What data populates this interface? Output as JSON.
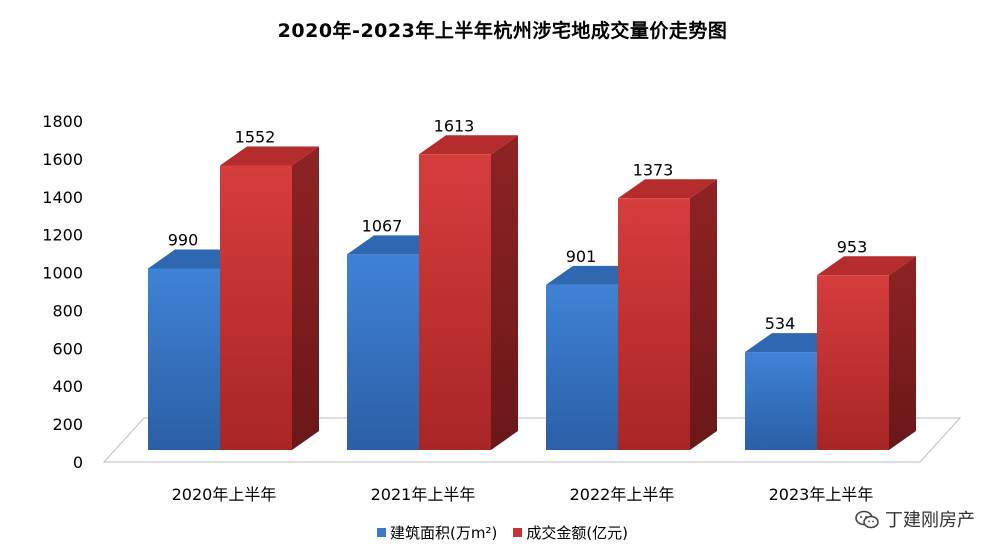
{
  "chart_data": {
    "type": "bar",
    "title": "2020年-2023年上半年杭州涉宅地成交量价走势图",
    "categories": [
      "2020年上半年",
      "2021年上半年",
      "2022年上半年",
      "2023年上半年"
    ],
    "series": [
      {
        "name": "建筑面积(万m²)",
        "values": [
          990,
          1067,
          901,
          534
        ],
        "color": "#3a78c8"
      },
      {
        "name": "成交金额(亿元)",
        "values": [
          1552,
          1613,
          1373,
          953
        ],
        "color": "#c93233"
      }
    ],
    "ylim": [
      0,
      1800
    ],
    "yticks": [
      0,
      200,
      400,
      600,
      800,
      1000,
      1200,
      1400,
      1600,
      1800
    ],
    "xlabel": "",
    "ylabel": "",
    "grid": false,
    "legend": "bottom"
  },
  "watermark": "丁建刚房产",
  "watermark_icon": "wechat-icon"
}
